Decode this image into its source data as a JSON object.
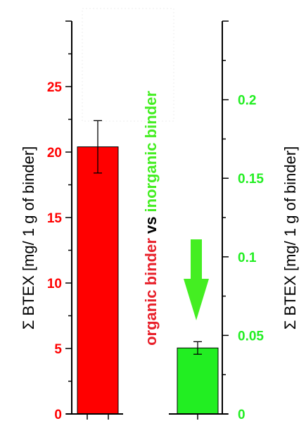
{
  "chart_data": {
    "type": "bar",
    "categories": [
      "organic binder",
      "inorganic binder"
    ],
    "series": [
      {
        "name": "organic binder",
        "axis": "left",
        "color": "#ff0000",
        "value": 20.4,
        "error": 2.0
      },
      {
        "name": "inorganic binder",
        "axis": "right",
        "color": "#22ee22",
        "value": 0.042,
        "error": 0.004
      }
    ],
    "left_axis": {
      "label": "Σ BTEX [mg/ 1 g of binder]",
      "ylim": [
        0,
        30
      ],
      "ticks": [
        0,
        5,
        10,
        15,
        20,
        25
      ],
      "tick_labels": [
        "0",
        "5",
        "10",
        "15",
        "20",
        "25"
      ],
      "tick_color": "#ff0000"
    },
    "right_axis": {
      "label": "Σ BTEX [mg/ 1 g of binder]",
      "ylim": [
        0,
        0.25
      ],
      "ticks": [
        0,
        0.05,
        0.1,
        0.15,
        0.2
      ],
      "tick_labels": [
        "0",
        "0.05",
        "0.1",
        "0.15",
        "0.2"
      ],
      "tick_color": "#22ee22"
    },
    "middle_label": {
      "part1": "organic binder",
      "part1_color": "#e8202a",
      "part2": " vs ",
      "part2_color": "#000000",
      "part3": "inorganic binder",
      "part3_color": "#44ee22"
    },
    "annotation": {
      "type": "arrow-down",
      "color": "#44ee22"
    }
  }
}
